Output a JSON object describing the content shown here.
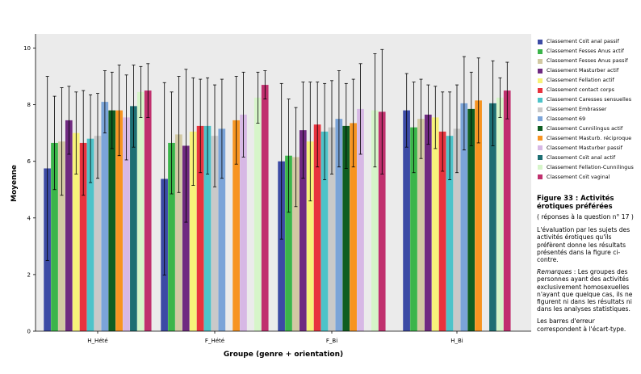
{
  "chart_data": {
    "type": "bar",
    "title": "",
    "xlabel": "Groupe (genre + orientation)",
    "ylabel": "Moyenne",
    "ylim": [
      0,
      10.5
    ],
    "yticks": [
      0,
      2,
      4,
      6,
      8,
      10
    ],
    "grid": false,
    "legend_position": "right",
    "error_bars": true,
    "plot_background": "#EBEBEB",
    "categories": [
      "H_Hété",
      "F_Hété",
      "F_Bi",
      "H_Bi"
    ],
    "series": [
      {
        "name": "Classement Coït anal passif",
        "color": "#3C4BA5",
        "values": [
          5.75,
          5.38,
          6.0,
          7.8
        ],
        "err": [
          3.25,
          3.4,
          2.75,
          1.3
        ]
      },
      {
        "name": "Classement Fesses Anus actif",
        "color": "#3BB54A",
        "values": [
          6.65,
          6.65,
          6.2,
          7.2
        ],
        "err": [
          1.65,
          1.8,
          2.0,
          1.6
        ]
      },
      {
        "name": "Classement Fesses Anus passif",
        "color": "#D2C9A3",
        "values": [
          6.7,
          6.95,
          6.15,
          7.5
        ],
        "err": [
          1.9,
          2.05,
          1.75,
          1.4
        ]
      },
      {
        "name": "Classement Masturber actif",
        "color": "#6F2A81",
        "values": [
          7.45,
          6.55,
          7.1,
          7.65
        ],
        "err": [
          1.2,
          2.7,
          1.7,
          1.05
        ]
      },
      {
        "name": "Classement Fellation actif",
        "color": "#F7F27A",
        "values": [
          7.0,
          7.05,
          6.7,
          7.55
        ],
        "err": [
          1.45,
          1.9,
          2.1,
          1.1
        ]
      },
      {
        "name": "Classement contact corps",
        "color": "#E8333E",
        "values": [
          6.65,
          7.25,
          7.3,
          7.05
        ],
        "err": [
          1.85,
          1.65,
          1.5,
          1.4
        ]
      },
      {
        "name": "Classement Caresses sensuelles",
        "color": "#4DC3C9",
        "values": [
          6.8,
          7.25,
          7.05,
          6.9
        ],
        "err": [
          1.55,
          1.7,
          1.7,
          1.55
        ]
      },
      {
        "name": "Classement Embrasser",
        "color": "#C9C9C9",
        "values": [
          6.9,
          6.9,
          7.2,
          7.15
        ],
        "err": [
          1.5,
          1.8,
          1.65,
          1.55
        ]
      },
      {
        "name": "Classement 69",
        "color": "#7BA4D8",
        "values": [
          8.1,
          7.15,
          7.5,
          8.05
        ],
        "err": [
          1.1,
          1.75,
          1.7,
          1.65
        ]
      },
      {
        "name": "Classement Cunnilingus actif",
        "color": "#0F5E22",
        "values": [
          7.8,
          null,
          7.25,
          7.85
        ],
        "err": [
          1.35,
          null,
          1.5,
          1.3
        ]
      },
      {
        "name": "Classement Masturb. réciproque",
        "color": "#F79421",
        "values": [
          7.8,
          7.45,
          7.35,
          8.15
        ],
        "err": [
          1.6,
          1.55,
          1.55,
          1.5
        ]
      },
      {
        "name": "Classement Masturber passif",
        "color": "#D7B8E5",
        "values": [
          7.55,
          7.65,
          7.85,
          null
        ],
        "err": [
          1.5,
          1.5,
          1.6,
          null
        ]
      },
      {
        "name": "Classement Coït anal actif",
        "color": "#1E6F73",
        "values": [
          7.95,
          null,
          null,
          8.05
        ],
        "err": [
          1.45,
          null,
          null,
          1.5
        ]
      },
      {
        "name": "Classement Fellation-Cunnilingus",
        "color": "#D6F5C9",
        "values": [
          8.45,
          8.25,
          7.8,
          8.25
        ],
        "err": [
          0.9,
          0.9,
          2.0,
          0.7
        ]
      },
      {
        "name": "Classement Coït vaginal",
        "color": "#C0306E",
        "values": [
          8.5,
          8.7,
          7.75,
          8.5
        ],
        "err": [
          0.95,
          0.5,
          2.2,
          1.0
        ]
      }
    ]
  },
  "caption": {
    "title": "Figure 33 : Activités érotiques préférées",
    "subtitle": "( réponses à la question n° 17 )",
    "paragraph1": "L'évaluation par les sujets des activités érotiques qu'ils préfèrent donne les résultats présentés dans la figure ci-contre.",
    "remarks_label": "Remarques",
    "remarks_text": " : Les groupes des personnes ayant des activités exclusivement homosexuelles n'ayant que quelque cas, ils ne figurent ni dans les résultats ni dans les analyses statistiques.",
    "paragraph3": "Les barres d'erreur correspondent à l'écart-type."
  }
}
